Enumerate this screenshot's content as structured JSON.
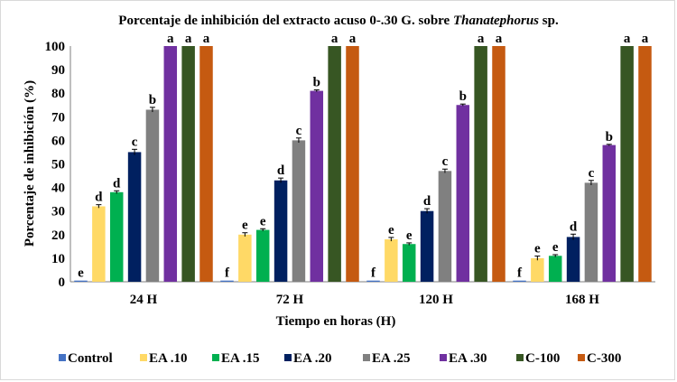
{
  "chart_data": {
    "type": "bar",
    "title": {
      "prefix": "Porcentaje de inhibición del extracto acuso 0-.30 G. sobre ",
      "italic": "Thanatephorus",
      "suffix": " sp."
    },
    "xlabel": "Tiempo en horas (H)",
    "ylabel": "Porcentaje de inhibición (%)",
    "ylim": [
      0,
      100
    ],
    "yticks": [
      0,
      10,
      20,
      30,
      40,
      50,
      60,
      70,
      80,
      90,
      100
    ],
    "grid": false,
    "legend_position": "bottom",
    "categories": [
      "24 H",
      "72 H",
      "120 H",
      "168 H"
    ],
    "series": [
      {
        "name": "Control",
        "color": "#4472c4",
        "values": [
          0.5,
          0.5,
          0.5,
          0.5
        ],
        "errors": [
          0,
          0,
          0,
          0
        ],
        "labels": [
          "e",
          "f",
          "f",
          "f"
        ]
      },
      {
        "name": "EA .10",
        "color": "#ffd966",
        "values": [
          32,
          20,
          18,
          10
        ],
        "errors": [
          0.7,
          0.8,
          0.8,
          0.9
        ],
        "labels": [
          "d",
          "e",
          "e",
          "e"
        ]
      },
      {
        "name": "EA .15",
        "color": "#00b050",
        "values": [
          38,
          22,
          16,
          11
        ],
        "errors": [
          0.6,
          0.5,
          0.5,
          0.5
        ],
        "labels": [
          "d",
          "e",
          "e",
          "e"
        ]
      },
      {
        "name": "EA .20",
        "color": "#002060",
        "values": [
          55,
          43,
          30,
          19
        ],
        "errors": [
          1.2,
          1.0,
          1.0,
          1.2
        ],
        "labels": [
          "c",
          "d",
          "d",
          "d"
        ]
      },
      {
        "name": "EA .25",
        "color": "#808080",
        "values": [
          73,
          60,
          47,
          42
        ],
        "errors": [
          1.0,
          1.0,
          0.8,
          1.0
        ],
        "labels": [
          "b",
          "c",
          "c",
          "c"
        ]
      },
      {
        "name": "EA .30",
        "color": "#7030a0",
        "values": [
          100,
          81,
          75,
          58
        ],
        "errors": [
          0,
          0.4,
          0.4,
          0.3
        ],
        "labels": [
          "a",
          "b",
          "b",
          "b"
        ]
      },
      {
        "name": "C-100",
        "color": "#375623",
        "values": [
          100,
          100,
          100,
          100
        ],
        "errors": [
          0,
          0,
          0,
          0
        ],
        "labels": [
          "a",
          "a",
          "a",
          "a"
        ]
      },
      {
        "name": "C-300",
        "color": "#c55a11",
        "values": [
          100,
          100,
          100,
          100
        ],
        "errors": [
          0,
          0,
          0,
          0
        ],
        "labels": [
          "a",
          "a",
          "a",
          "a"
        ]
      }
    ]
  }
}
